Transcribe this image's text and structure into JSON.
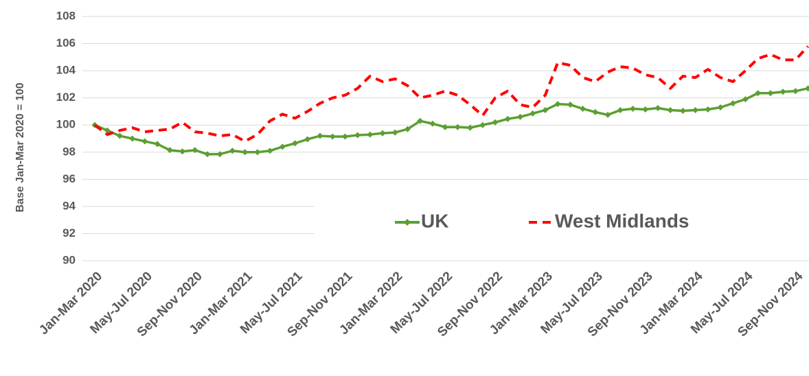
{
  "chart_data": {
    "type": "line",
    "y_label": "Base Jan-Mar 2020 = 100",
    "categories": [
      "Jan-Mar 2020",
      null,
      null,
      null,
      "May-Jul 2020",
      null,
      null,
      null,
      "Sep-Nov 2020",
      null,
      null,
      null,
      "Jan-Mar 2021",
      null,
      null,
      null,
      "May-Jul 2021",
      null,
      null,
      null,
      "Sep-Nov 2021",
      null,
      null,
      null,
      "Jan-Mar 2022",
      null,
      null,
      null,
      "May-Jul 2022",
      null,
      null,
      null,
      "Sep-Nov 2022",
      null,
      null,
      null,
      "Jan-Mar 2023",
      null,
      null,
      null,
      "May-Jul 2023",
      null,
      null,
      null,
      "Sep-Nov 2023",
      null,
      null,
      null,
      "Jan-Mar 2024",
      null,
      null,
      null,
      "May-Jul 2024",
      null,
      null,
      null,
      "Sep-Nov 2024",
      null
    ],
    "series": [
      {
        "name": "UK",
        "color": "#5b9f32",
        "dash": false,
        "markers": true,
        "values": [
          100,
          99.6,
          99.2,
          99.0,
          98.8,
          98.6,
          98.15,
          98.05,
          98.15,
          97.85,
          97.85,
          98.1,
          98.0,
          98.0,
          98.1,
          98.4,
          98.65,
          98.95,
          99.2,
          99.15,
          99.15,
          99.25,
          99.3,
          99.4,
          99.45,
          99.7,
          100.3,
          100.1,
          99.85,
          99.85,
          99.8,
          100.0,
          100.2,
          100.45,
          100.6,
          100.85,
          101.1,
          101.55,
          101.5,
          101.2,
          100.95,
          100.75,
          101.1,
          101.2,
          101.15,
          101.25,
          101.1,
          101.05,
          101.1,
          101.15,
          101.3,
          101.6,
          101.9,
          102.35,
          102.35,
          102.45,
          102.5,
          102.7
        ]
      },
      {
        "name": "West Midlands",
        "color": "#ff0000",
        "dash": true,
        "markers": false,
        "values": [
          100,
          99.3,
          99.6,
          99.8,
          99.5,
          99.6,
          99.7,
          100.2,
          99.5,
          99.4,
          99.2,
          99.3,
          98.8,
          99.3,
          100.3,
          100.8,
          100.5,
          101.0,
          101.6,
          102.0,
          102.2,
          102.7,
          103.6,
          103.2,
          103.4,
          102.9,
          102.0,
          102.2,
          102.5,
          102.2,
          101.5,
          100.7,
          102.0,
          102.5,
          101.5,
          101.3,
          102.2,
          104.6,
          104.4,
          103.5,
          103.2,
          103.9,
          104.3,
          104.2,
          103.7,
          103.5,
          102.7,
          103.6,
          103.5,
          104.1,
          103.5,
          103.2,
          104.0,
          104.9,
          105.2,
          104.8,
          104.8,
          105.8
        ]
      }
    ],
    "ylim": [
      90,
      108
    ],
    "yticks": [
      90,
      92,
      94,
      96,
      98,
      100,
      102,
      104,
      106,
      108
    ],
    "grid": true
  }
}
